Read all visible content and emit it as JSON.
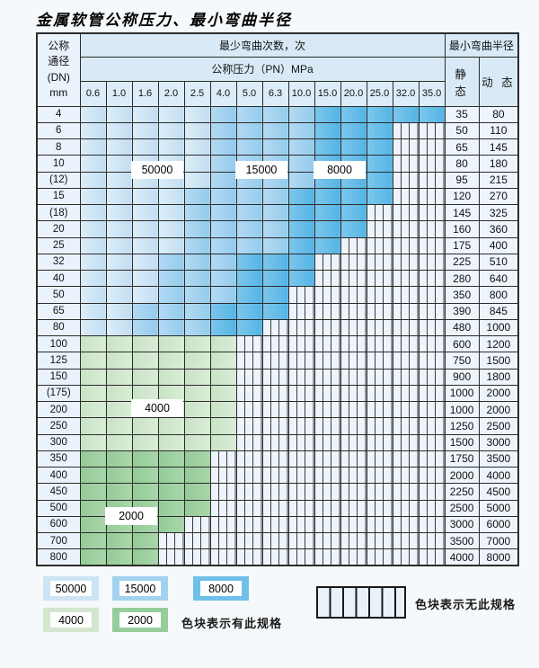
{
  "page": {
    "title": "金属软管公称压力、最小弯曲半径"
  },
  "table": {
    "dn_header_lines": [
      "公称",
      "通径",
      "(DN)",
      "mm"
    ],
    "bend_times_header": "最少弯曲次数，次",
    "pressure_header": "公称压力（PN）MPa",
    "radius_header": "最小弯曲半径",
    "static_header": "静 态",
    "dynamic_header": "动 态"
  },
  "zone_labels": {
    "z50000": "50000",
    "z15000": "15000",
    "z8000": "8000",
    "z4000": "4000",
    "z2000": "2000"
  },
  "legend": {
    "items": [
      {
        "label": "50000",
        "color": "#cde4f4"
      },
      {
        "label": "15000",
        "color": "#a3d2ef"
      },
      {
        "label": "8000",
        "color": "#6fc0e8"
      },
      {
        "label": "4000",
        "color": "#d3e7d0"
      },
      {
        "label": "2000",
        "color": "#97cd9a"
      }
    ],
    "has_spec_text": "色块表示有此规格",
    "no_spec_text": "色块表示无此规格"
  },
  "colors": {
    "zone_light_blue": "#cde4f4",
    "zone_medium_blue": "#a3d2ef",
    "zone_dark_blue": "#6fc0e8",
    "zone_light_green": "#d3e7d0",
    "zone_medium_green": "#97cd9a",
    "no_spec_cell_bg": "#eef4fb",
    "header_bg": "#d9eaf6",
    "grid_line": "#2c2c2c"
  },
  "chart_data": {
    "type": "table",
    "title": "金属软管公称压力、最小弯曲半径",
    "pressure_columns_mpa": [
      0.6,
      1.0,
      1.6,
      2.0,
      2.5,
      4.0,
      5.0,
      6.3,
      10.0,
      15.0,
      20.0,
      25.0,
      32.0,
      35.0
    ],
    "zone_code_legend": {
      "L": "最少弯曲次数 50000 次",
      "M": "最少弯曲次数 15000 次",
      "D": "最少弯曲次数 8000 次",
      "G": "最少弯曲次数 4000 次",
      "g": "最少弯曲次数 2000 次",
      "X": "无此规格"
    },
    "rows": [
      {
        "dn": "4",
        "zones": "LLLLLMMMMDDDDD",
        "static_radius": 35,
        "dynamic_radius": 80
      },
      {
        "dn": "6",
        "zones": "LLLLLMMMMDDDXX",
        "static_radius": 50,
        "dynamic_radius": 110
      },
      {
        "dn": "8",
        "zones": "LLLLLMMMMDDDXX",
        "static_radius": 65,
        "dynamic_radius": 145
      },
      {
        "dn": "10",
        "zones": "LLLLLMMMMDDDXX",
        "static_radius": 80,
        "dynamic_radius": 180
      },
      {
        "dn": "(12)",
        "zones": "LLLLLMMMMDDDXX",
        "static_radius": 95,
        "dynamic_radius": 215
      },
      {
        "dn": "15",
        "zones": "LLLLMMMMDDDDXX",
        "static_radius": 120,
        "dynamic_radius": 270
      },
      {
        "dn": "(18)",
        "zones": "LLLLMMMMDDDXXX",
        "static_radius": 145,
        "dynamic_radius": 325
      },
      {
        "dn": "20",
        "zones": "LLLLMMMMDDDXXX",
        "static_radius": 160,
        "dynamic_radius": 360
      },
      {
        "dn": "25",
        "zones": "LLLLMMMMDDXXXX",
        "static_radius": 175,
        "dynamic_radius": 400
      },
      {
        "dn": "32",
        "zones": "LLLMMMDDDXXXXX",
        "static_radius": 225,
        "dynamic_radius": 510
      },
      {
        "dn": "40",
        "zones": "LLLMMMDDDXXXXX",
        "static_radius": 280,
        "dynamic_radius": 640
      },
      {
        "dn": "50",
        "zones": "LLLMMMDDXXXXXX",
        "static_radius": 350,
        "dynamic_radius": 800
      },
      {
        "dn": "65",
        "zones": "LLMMMDDDXXXXXX",
        "static_radius": 390,
        "dynamic_radius": 845
      },
      {
        "dn": "80",
        "zones": "LLMMMDDXXXXXXX",
        "static_radius": 480,
        "dynamic_radius": 1000
      },
      {
        "dn": "100",
        "zones": "GGGGGGXXXXXXXX",
        "static_radius": 600,
        "dynamic_radius": 1200
      },
      {
        "dn": "125",
        "zones": "GGGGGGXXXXXXXX",
        "static_radius": 750,
        "dynamic_radius": 1500
      },
      {
        "dn": "150",
        "zones": "GGGGGGXXXXXXXX",
        "static_radius": 900,
        "dynamic_radius": 1800
      },
      {
        "dn": "(175)",
        "zones": "GGGGGGXXXXXXXX",
        "static_radius": 1000,
        "dynamic_radius": 2000
      },
      {
        "dn": "200",
        "zones": "GGGGGGXXXXXXXX",
        "static_radius": 1000,
        "dynamic_radius": 2000
      },
      {
        "dn": "250",
        "zones": "GGGGGGXXXXXXXX",
        "static_radius": 1250,
        "dynamic_radius": 2500
      },
      {
        "dn": "300",
        "zones": "GGGGGGXXXXXXXX",
        "static_radius": 1500,
        "dynamic_radius": 3000
      },
      {
        "dn": "350",
        "zones": "gggggXXXXXXXXX",
        "static_radius": 1750,
        "dynamic_radius": 3500
      },
      {
        "dn": "400",
        "zones": "gggggXXXXXXXXX",
        "static_radius": 2000,
        "dynamic_radius": 4000
      },
      {
        "dn": "450",
        "zones": "gggggXXXXXXXXX",
        "static_radius": 2250,
        "dynamic_radius": 4500
      },
      {
        "dn": "500",
        "zones": "gggggXXXXXXXXX",
        "static_radius": 2500,
        "dynamic_radius": 5000
      },
      {
        "dn": "600",
        "zones": "ggggXXXXXXXXXX",
        "static_radius": 3000,
        "dynamic_radius": 6000
      },
      {
        "dn": "700",
        "zones": "gggXXXXXXXXXXX",
        "static_radius": 3500,
        "dynamic_radius": 7000
      },
      {
        "dn": "800",
        "zones": "gggXXXXXXXXXXX",
        "static_radius": 4000,
        "dynamic_radius": 8000
      }
    ]
  }
}
